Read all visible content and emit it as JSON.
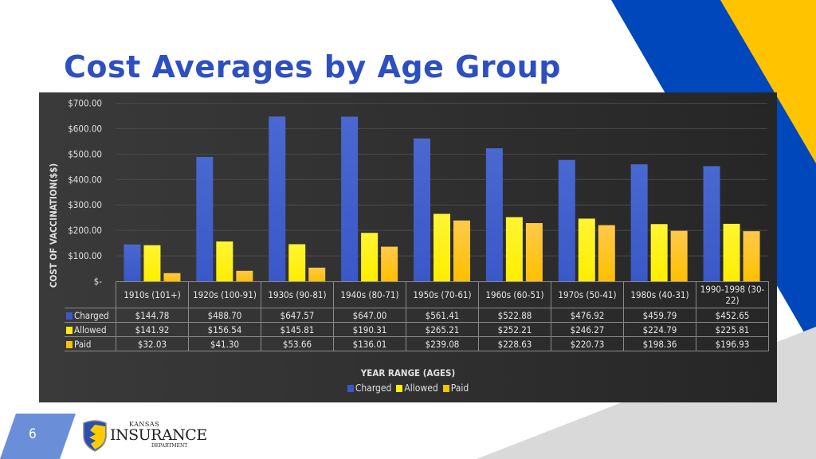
{
  "slide": {
    "title": "Cost Averages by Age Group",
    "page_number": "6"
  },
  "logo": {
    "line1": "Kansas",
    "line2": "Insurance",
    "line3": "Department"
  },
  "colors": {
    "title": "#2e4fc2",
    "band_blue": "#0047bb",
    "band_yellow": "#ffc300",
    "charged": "#3a58c8",
    "allowed": "#ffee00",
    "paid": "#ffc000"
  },
  "chart_data": {
    "type": "bar",
    "xlabel": "YEAR RANGE (AGES)",
    "ylabel": "COST OF VACCINATION($$)",
    "ylim": [
      0,
      700
    ],
    "yticks": [
      0,
      100,
      200,
      300,
      400,
      500,
      600,
      700
    ],
    "ytick_labels": [
      "$-",
      "$100.00",
      "$200.00",
      "$300.00",
      "$400.00",
      "$500.00",
      "$600.00",
      "$700.00"
    ],
    "grid": true,
    "legend": "bottom",
    "categories": [
      "1910s (101+)",
      "1920s (100-91)",
      "1930s (90-81)",
      "1940s (80-71)",
      "1950s (70-61)",
      "1960s (60-51)",
      "1970s (50-41)",
      "1980s (40-31)",
      "1990-1998 (30-22)"
    ],
    "series": [
      {
        "name": "Charged",
        "values": [
          144.78,
          488.7,
          647.57,
          647.0,
          561.41,
          522.88,
          476.92,
          459.79,
          452.65
        ],
        "labels": [
          "$144.78",
          "$488.70",
          "$647.57",
          "$647.00",
          "$561.41",
          "$522.88",
          "$476.92",
          "$459.79",
          "$452.65"
        ]
      },
      {
        "name": "Allowed",
        "values": [
          141.92,
          156.54,
          145.81,
          190.31,
          265.21,
          252.21,
          246.27,
          224.79,
          225.81
        ],
        "labels": [
          "$141.92",
          "$156.54",
          "$145.81",
          "$190.31",
          "$265.21",
          "$252.21",
          "$246.27",
          "$224.79",
          "$225.81"
        ]
      },
      {
        "name": "Paid",
        "values": [
          32.03,
          41.3,
          53.66,
          136.01,
          239.08,
          228.63,
          220.73,
          198.36,
          196.93
        ],
        "labels": [
          "$32.03",
          "$41.30",
          "$53.66",
          "$136.01",
          "$239.08",
          "$228.63",
          "$220.73",
          "$198.36",
          "$196.93"
        ]
      }
    ]
  }
}
